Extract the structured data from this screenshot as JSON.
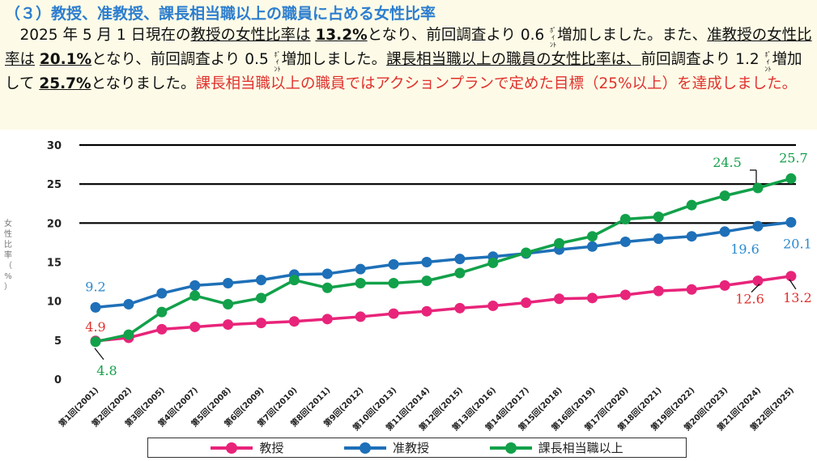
{
  "header": {
    "heading": "（３）教授、准教授、課長相当職以上の職員に占める女性比率",
    "para": {
      "s1": "　2025 年 5 月 1 日現在の",
      "u1": "教授の女性比率は",
      "s1b": " ",
      "b1": "13.2%",
      "s2": "となり、前回調査より 0.6 ",
      "pt1a": "ﾎﾟｲ",
      "pt1b": "ﾝﾄ",
      "s3": "増加しました。また、",
      "u2": "准教授の女性比率は",
      "s3b": " ",
      "b2": "20.1%",
      "s4": "となり、前回調査より 0.5 ",
      "pt2a": "ﾎﾟｲ",
      "pt2b": "ﾝﾄ",
      "s5": "増加しました。",
      "u3": "課長相当職以上の職員の女性比率は、",
      "s6": "前回調査より 1.2 ",
      "pt3a": "ﾎﾟｲ",
      "pt3b": "ﾝﾄ",
      "s7": "増加して ",
      "b3": "25.7%",
      "s8": "となりました。",
      "red": "課長相当職以上の職員ではアクションプランで定めた目標（25%以上）を達成しました。"
    }
  },
  "y_axis_label_chars": [
    "女",
    "性",
    "比",
    "率",
    "（",
    "%",
    "）"
  ],
  "chart_data": {
    "type": "line",
    "title": "",
    "ylabel": "女性比率（%）",
    "ylim": [
      0,
      30
    ],
    "yticks": [
      0,
      5,
      10,
      15,
      20,
      25,
      30
    ],
    "gridlines": [
      20,
      25,
      30
    ],
    "categories": [
      "第1回(2001)",
      "第2回(2002)",
      "第3回(2005)",
      "第4回(2007)",
      "第5回(2008)",
      "第6回(2009)",
      "第7回(2010)",
      "第8回(2011)",
      "第9回(2012)",
      "第10回(2013)",
      "第11回(2014)",
      "第12回(2015)",
      "第13回(2016)",
      "第14回(2017)",
      "第15回(2018)",
      "第16回(2019)",
      "第17回(2020)",
      "第18回(2021)",
      "第19回(2022)",
      "第20回(2023)",
      "第21回(2024)",
      "第22回(2025)"
    ],
    "series": [
      {
        "name": "教授",
        "color": "#e8247a",
        "label_color": "#e0312d",
        "values": [
          4.9,
          5.3,
          6.4,
          6.7,
          7.0,
          7.2,
          7.4,
          7.7,
          8.0,
          8.4,
          8.7,
          9.1,
          9.4,
          9.8,
          10.3,
          10.4,
          10.8,
          11.3,
          11.5,
          12.0,
          12.6,
          13.2
        ]
      },
      {
        "name": "准教授",
        "color": "#1e70b8",
        "label_color": "#2a8ad0",
        "values": [
          9.2,
          9.6,
          11.0,
          12.0,
          12.3,
          12.7,
          13.4,
          13.5,
          14.1,
          14.7,
          15.0,
          15.4,
          15.7,
          16.1,
          16.6,
          17.0,
          17.6,
          18.0,
          18.3,
          18.9,
          19.6,
          20.1
        ]
      },
      {
        "name": "課長相当職以上",
        "color": "#12a14a",
        "label_color": "#12a14a",
        "values": [
          4.8,
          5.7,
          8.6,
          10.7,
          9.6,
          10.4,
          12.7,
          11.7,
          12.3,
          12.3,
          12.6,
          13.6,
          14.9,
          16.2,
          17.4,
          18.3,
          20.5,
          20.8,
          22.3,
          23.5,
          24.5,
          25.7
        ]
      }
    ],
    "annotations": [
      {
        "series": 0,
        "index": 0,
        "text": "4.9",
        "pos": "above"
      },
      {
        "series": 0,
        "index": 20,
        "text": "12.6",
        "pos": "below"
      },
      {
        "series": 0,
        "index": 21,
        "text": "13.2",
        "pos": "below"
      },
      {
        "series": 1,
        "index": 0,
        "text": "9.2",
        "pos": "above"
      },
      {
        "series": 1,
        "index": 20,
        "text": "19.6",
        "pos": "below"
      },
      {
        "series": 1,
        "index": 21,
        "text": "20.1",
        "pos": "below"
      },
      {
        "series": 2,
        "index": 0,
        "text": "4.8",
        "pos": "below"
      },
      {
        "series": 2,
        "index": 20,
        "text": "24.5",
        "pos": "above"
      },
      {
        "series": 2,
        "index": 21,
        "text": "25.7",
        "pos": "above"
      }
    ],
    "legend": {
      "position": "bottom",
      "items": [
        "教授",
        "准教授",
        "課長相当職以上"
      ]
    }
  }
}
